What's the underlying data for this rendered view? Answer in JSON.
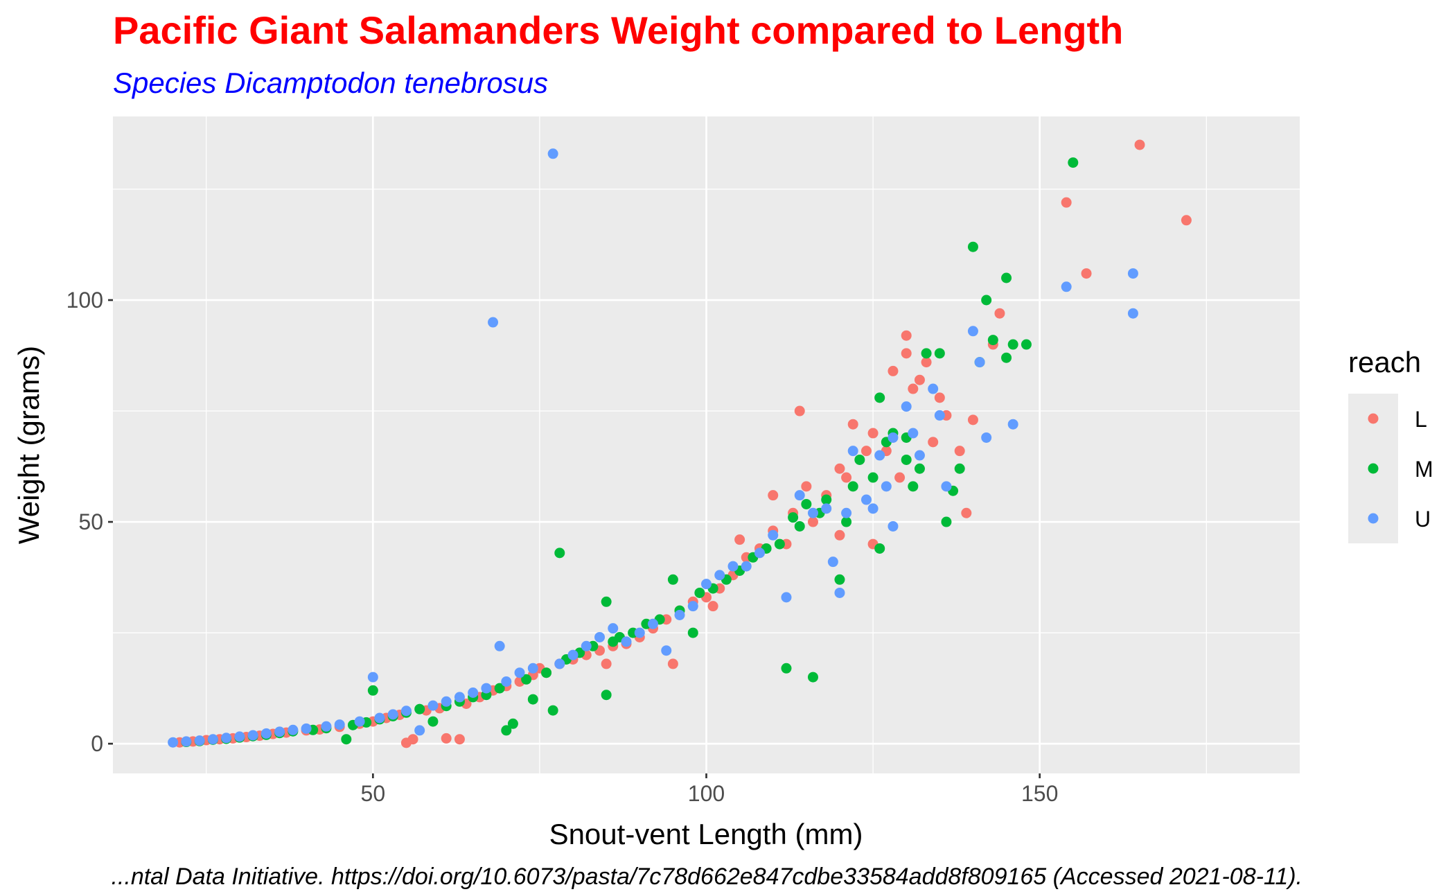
{
  "chart_data": {
    "type": "scatter",
    "title": "Pacific Giant Salamanders Weight compared to Length",
    "subtitle": "Species Dicamptodon tenebrosus",
    "xlabel": "Snout-vent Length (mm)",
    "ylabel": "Weight (grams)",
    "caption": "...ntal Data Initiative. https://doi.org/10.6073/pasta/7c78d662e847cdbe33584add8f809165 (Accessed 2021-08-11).",
    "xlim": [
      11,
      189
    ],
    "ylim": [
      -6.7,
      141.4
    ],
    "x_ticks": [
      50,
      100,
      150
    ],
    "y_ticks": [
      0,
      50,
      100
    ],
    "grid": true,
    "legend": {
      "title": "reach",
      "position": "right",
      "entries": [
        {
          "label": "L",
          "color": "#F8766D"
        },
        {
          "label": "M",
          "color": "#00BA38"
        },
        {
          "label": "U",
          "color": "#619CFF"
        }
      ]
    },
    "series": [
      {
        "name": "L",
        "color": "#F8766D",
        "points": [
          [
            21,
            0.3
          ],
          [
            23,
            0.5
          ],
          [
            25,
            0.8
          ],
          [
            27,
            1
          ],
          [
            29,
            1.2
          ],
          [
            31,
            1.5
          ],
          [
            33,
            1.8
          ],
          [
            35,
            2.2
          ],
          [
            37,
            2.5
          ],
          [
            40,
            3
          ],
          [
            42,
            3.2
          ],
          [
            45,
            3.8
          ],
          [
            48,
            4.5
          ],
          [
            50,
            5
          ],
          [
            52,
            5.8
          ],
          [
            54,
            6.5
          ],
          [
            55,
            0.2
          ],
          [
            56,
            1
          ],
          [
            58,
            7.5
          ],
          [
            60,
            8
          ],
          [
            61,
            1.2
          ],
          [
            63,
            1
          ],
          [
            64,
            9
          ],
          [
            66,
            10.5
          ],
          [
            68,
            12
          ],
          [
            70,
            13
          ],
          [
            72,
            14
          ],
          [
            74,
            15.5
          ],
          [
            75,
            17
          ],
          [
            76,
            16
          ],
          [
            78,
            18
          ],
          [
            80,
            19
          ],
          [
            82,
            20
          ],
          [
            84,
            21
          ],
          [
            85,
            18
          ],
          [
            86,
            22
          ],
          [
            88,
            22.5
          ],
          [
            90,
            24
          ],
          [
            92,
            26
          ],
          [
            94,
            28
          ],
          [
            95,
            18
          ],
          [
            96,
            30
          ],
          [
            98,
            32
          ],
          [
            100,
            33
          ],
          [
            101,
            31
          ],
          [
            102,
            35
          ],
          [
            104,
            38
          ],
          [
            105,
            46
          ],
          [
            106,
            42
          ],
          [
            108,
            44
          ],
          [
            110,
            48
          ],
          [
            110,
            56
          ],
          [
            112,
            45
          ],
          [
            113,
            52
          ],
          [
            114,
            75
          ],
          [
            115,
            58
          ],
          [
            116,
            50
          ],
          [
            118,
            56
          ],
          [
            120,
            62
          ],
          [
            120,
            47
          ],
          [
            121,
            60
          ],
          [
            122,
            72
          ],
          [
            124,
            66
          ],
          [
            125,
            70
          ],
          [
            125,
            45
          ],
          [
            127,
            66
          ],
          [
            128,
            84
          ],
          [
            129,
            60
          ],
          [
            130,
            92
          ],
          [
            130,
            88
          ],
          [
            131,
            80
          ],
          [
            132,
            82
          ],
          [
            133,
            86
          ],
          [
            134,
            68
          ],
          [
            135,
            78
          ],
          [
            136,
            74
          ],
          [
            138,
            66
          ],
          [
            139,
            52
          ],
          [
            140,
            73
          ],
          [
            143,
            90
          ],
          [
            144,
            97
          ],
          [
            154,
            122
          ],
          [
            157,
            106
          ],
          [
            165,
            135
          ],
          [
            172,
            118
          ]
        ]
      },
      {
        "name": "M",
        "color": "#00BA38",
        "points": [
          [
            22,
            0.4
          ],
          [
            24,
            0.6
          ],
          [
            26,
            0.9
          ],
          [
            28,
            1.1
          ],
          [
            30,
            1.4
          ],
          [
            32,
            1.7
          ],
          [
            34,
            2
          ],
          [
            36,
            2.4
          ],
          [
            38,
            2.8
          ],
          [
            41,
            3.1
          ],
          [
            43,
            3.5
          ],
          [
            46,
            1
          ],
          [
            47,
            4.2
          ],
          [
            49,
            4.8
          ],
          [
            50,
            12
          ],
          [
            51,
            5.5
          ],
          [
            53,
            6.2
          ],
          [
            55,
            7
          ],
          [
            57,
            7.8
          ],
          [
            59,
            5
          ],
          [
            61,
            8.5
          ],
          [
            63,
            9.5
          ],
          [
            65,
            10.5
          ],
          [
            67,
            11
          ],
          [
            69,
            12.5
          ],
          [
            70,
            3
          ],
          [
            71,
            4.5
          ],
          [
            73,
            14.5
          ],
          [
            74,
            10
          ],
          [
            76,
            16
          ],
          [
            77,
            7.5
          ],
          [
            78,
            43
          ],
          [
            79,
            19
          ],
          [
            81,
            20.5
          ],
          [
            83,
            22
          ],
          [
            85,
            32
          ],
          [
            85,
            11
          ],
          [
            86,
            23
          ],
          [
            87,
            24
          ],
          [
            89,
            25
          ],
          [
            91,
            27
          ],
          [
            93,
            28
          ],
          [
            95,
            37
          ],
          [
            96,
            30
          ],
          [
            98,
            25
          ],
          [
            99,
            34
          ],
          [
            101,
            35
          ],
          [
            103,
            37
          ],
          [
            105,
            39
          ],
          [
            107,
            42
          ],
          [
            109,
            44
          ],
          [
            111,
            45
          ],
          [
            112,
            17
          ],
          [
            113,
            51
          ],
          [
            114,
            49
          ],
          [
            115,
            54
          ],
          [
            116,
            15
          ],
          [
            117,
            52
          ],
          [
            118,
            55
          ],
          [
            120,
            37
          ],
          [
            121,
            50
          ],
          [
            122,
            58
          ],
          [
            123,
            64
          ],
          [
            125,
            60
          ],
          [
            126,
            78
          ],
          [
            126,
            44
          ],
          [
            127,
            68
          ],
          [
            128,
            70
          ],
          [
            130,
            64
          ],
          [
            130,
            69
          ],
          [
            131,
            58
          ],
          [
            132,
            62
          ],
          [
            133,
            88
          ],
          [
            135,
            88
          ],
          [
            136,
            50
          ],
          [
            137,
            57
          ],
          [
            138,
            62
          ],
          [
            140,
            112
          ],
          [
            141,
            86
          ],
          [
            142,
            100
          ],
          [
            143,
            91
          ],
          [
            145,
            105
          ],
          [
            145,
            87
          ],
          [
            146,
            90
          ],
          [
            148,
            90
          ],
          [
            155,
            131
          ]
        ]
      },
      {
        "name": "U",
        "color": "#619CFF",
        "points": [
          [
            20,
            0.3
          ],
          [
            22,
            0.5
          ],
          [
            24,
            0.7
          ],
          [
            26,
            1
          ],
          [
            28,
            1.3
          ],
          [
            30,
            1.6
          ],
          [
            32,
            1.9
          ],
          [
            34,
            2.3
          ],
          [
            36,
            2.7
          ],
          [
            38,
            3.1
          ],
          [
            40,
            3.4
          ],
          [
            43,
            3.9
          ],
          [
            45,
            4.3
          ],
          [
            48,
            5
          ],
          [
            50,
            15
          ],
          [
            51,
            5.8
          ],
          [
            53,
            6.6
          ],
          [
            55,
            7.4
          ],
          [
            57,
            3
          ],
          [
            59,
            8.6
          ],
          [
            61,
            9.5
          ],
          [
            63,
            10.5
          ],
          [
            65,
            11.5
          ],
          [
            67,
            12.5
          ],
          [
            68,
            95
          ],
          [
            69,
            22
          ],
          [
            70,
            14
          ],
          [
            72,
            16
          ],
          [
            74,
            17
          ],
          [
            77,
            133
          ],
          [
            78,
            18
          ],
          [
            80,
            20
          ],
          [
            82,
            22
          ],
          [
            84,
            24
          ],
          [
            86,
            26
          ],
          [
            88,
            23
          ],
          [
            90,
            25
          ],
          [
            92,
            27
          ],
          [
            94,
            21
          ],
          [
            96,
            29
          ],
          [
            98,
            31
          ],
          [
            100,
            36
          ],
          [
            102,
            38
          ],
          [
            104,
            40
          ],
          [
            106,
            40
          ],
          [
            108,
            43
          ],
          [
            110,
            47
          ],
          [
            112,
            33
          ],
          [
            114,
            56
          ],
          [
            116,
            52
          ],
          [
            118,
            53
          ],
          [
            119,
            41
          ],
          [
            120,
            34
          ],
          [
            121,
            52
          ],
          [
            122,
            66
          ],
          [
            124,
            55
          ],
          [
            125,
            53
          ],
          [
            126,
            65
          ],
          [
            127,
            58
          ],
          [
            128,
            69
          ],
          [
            128,
            49
          ],
          [
            130,
            76
          ],
          [
            131,
            70
          ],
          [
            132,
            65
          ],
          [
            134,
            80
          ],
          [
            135,
            74
          ],
          [
            136,
            58
          ],
          [
            140,
            93
          ],
          [
            141,
            86
          ],
          [
            142,
            69
          ],
          [
            146,
            72
          ],
          [
            154,
            103
          ],
          [
            164,
            106
          ],
          [
            164,
            97
          ]
        ]
      }
    ]
  }
}
